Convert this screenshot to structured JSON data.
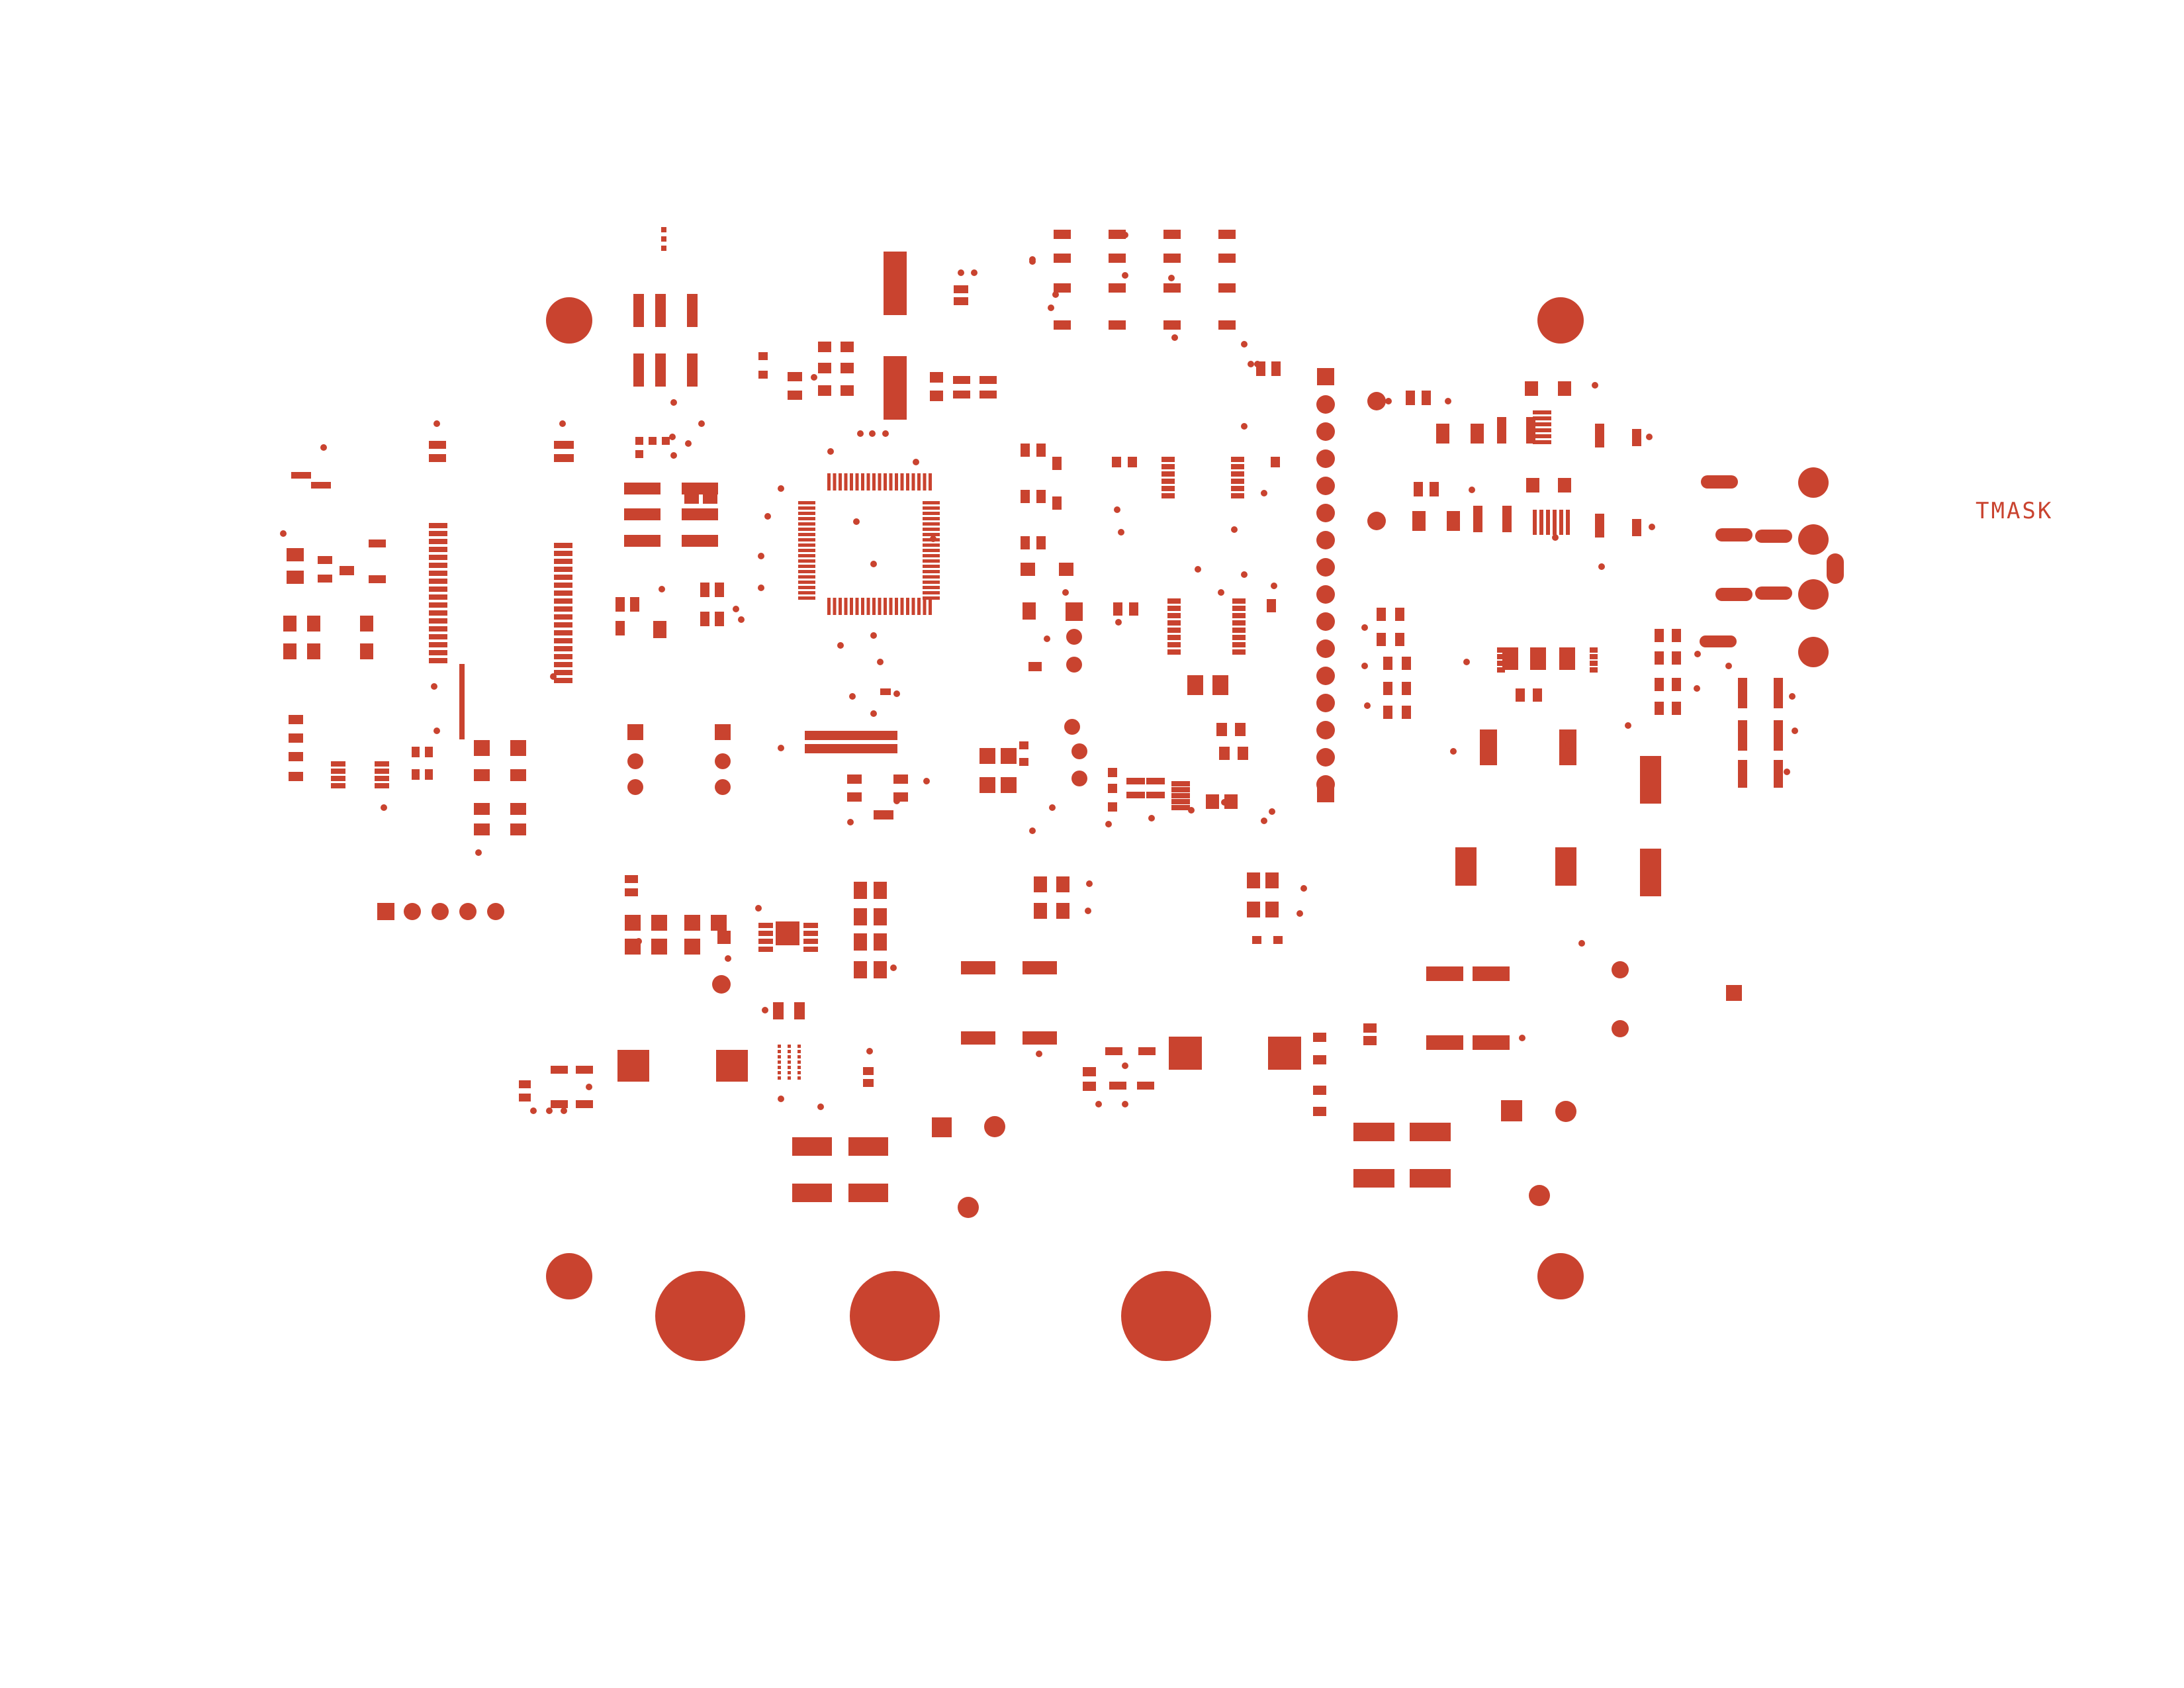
{
  "layer": {
    "label": "TMASK"
  },
  "colors": {
    "copper": "#c9432f",
    "background": "#ffffff"
  }
}
